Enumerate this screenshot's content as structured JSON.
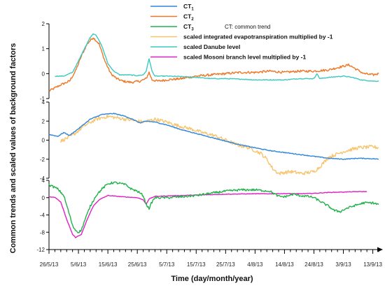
{
  "chart_data": {
    "type": "line",
    "xlabel": "Time (day/month/year)",
    "ylabel": "Common trends and scaled values of background factors",
    "x_tick_labels": [
      "26/5/13",
      "5/6/13",
      "15/6/13",
      "25/6/13",
      "5/7/13",
      "15/7/13",
      "25/7/13",
      "4/8/13",
      "14/8/13",
      "24/8/13",
      "3/9/13",
      "13/9/13"
    ],
    "x_start_day": 0,
    "x_end_day": 112,
    "legend": {
      "placement": "top",
      "note": "CT: common trend",
      "entries": [
        {
          "base": "CT",
          "sub": "1",
          "color": "#2e86de"
        },
        {
          "base": "CT",
          "sub": "2",
          "color": "#ee7624"
        },
        {
          "base": "CT",
          "sub": "3",
          "color": "#22b24c"
        },
        {
          "base": "scaled integrated evapotranspiration multiplied by -1",
          "sub": "",
          "color": "#f7c46c"
        },
        {
          "base": "scaled Danube level",
          "sub": "",
          "color": "#3cc9c0"
        },
        {
          "base": "scaled Mosoni branch level multiplied by -1",
          "sub": "",
          "color": "#e020c6"
        }
      ]
    },
    "panels": [
      {
        "name": "top",
        "ylim": [
          -1,
          2
        ],
        "yticks": [
          -1,
          0,
          1,
          2
        ],
        "series": [
          {
            "ref": "CT2",
            "color": "#ee7624",
            "noise": 0.045,
            "points": [
              [
                0,
                -0.7
              ],
              [
                4,
                -0.45
              ],
              [
                7,
                -0.3
              ],
              [
                9,
                0.1
              ],
              [
                11,
                0.7
              ],
              [
                13,
                1.2
              ],
              [
                15,
                1.45
              ],
              [
                17,
                1.2
              ],
              [
                19,
                0.5
              ],
              [
                21,
                0.0
              ],
              [
                23,
                -0.2
              ],
              [
                25,
                -0.3
              ],
              [
                28,
                -0.35
              ],
              [
                31,
                -0.3
              ],
              [
                33,
                -0.2
              ],
              [
                34,
                0.05
              ],
              [
                35,
                -0.25
              ],
              [
                37,
                -0.3
              ],
              [
                40,
                -0.25
              ],
              [
                45,
                -0.2
              ],
              [
                50,
                -0.1
              ],
              [
                55,
                -0.05
              ],
              [
                60,
                0.0
              ],
              [
                65,
                0.05
              ],
              [
                70,
                0.05
              ],
              [
                75,
                0.1
              ],
              [
                80,
                0.05
              ],
              [
                85,
                0.1
              ],
              [
                90,
                0.1
              ],
              [
                95,
                0.15
              ],
              [
                100,
                0.3
              ],
              [
                102,
                0.35
              ],
              [
                104,
                0.2
              ],
              [
                107,
                0.0
              ],
              [
                110,
                -0.05
              ],
              [
                112,
                0.0
              ]
            ]
          },
          {
            "ref": "Danube",
            "color": "#3cc9c0",
            "noise": 0.015,
            "points": [
              [
                2,
                -0.1
              ],
              [
                5,
                -0.1
              ],
              [
                8,
                0.05
              ],
              [
                10,
                0.5
              ],
              [
                12,
                1.0
              ],
              [
                14,
                1.45
              ],
              [
                15,
                1.6
              ],
              [
                16,
                1.55
              ],
              [
                18,
                1.1
              ],
              [
                20,
                0.4
              ],
              [
                22,
                0.1
              ],
              [
                24,
                -0.05
              ],
              [
                27,
                -0.05
              ],
              [
                30,
                -0.08
              ],
              [
                32,
                -0.05
              ],
              [
                33,
                0.1
              ],
              [
                34,
                0.6
              ],
              [
                35,
                0.1
              ],
              [
                36,
                -0.1
              ],
              [
                40,
                -0.1
              ],
              [
                45,
                -0.12
              ],
              [
                50,
                -0.15
              ],
              [
                55,
                -0.2
              ],
              [
                60,
                -0.2
              ],
              [
                65,
                -0.22
              ],
              [
                70,
                -0.25
              ],
              [
                75,
                -0.25
              ],
              [
                80,
                -0.25
              ],
              [
                85,
                -0.2
              ],
              [
                90,
                -0.2
              ],
              [
                91,
                0.0
              ],
              [
                92,
                -0.2
              ],
              [
                95,
                -0.15
              ],
              [
                100,
                -0.1
              ],
              [
                103,
                -0.15
              ],
              [
                106,
                -0.25
              ],
              [
                110,
                -0.3
              ],
              [
                112,
                -0.3
              ]
            ]
          }
        ]
      },
      {
        "name": "middle",
        "ylim": [
          -4,
          4
        ],
        "yticks": [
          -4,
          -2,
          0,
          2,
          4
        ],
        "series": [
          {
            "ref": "ET",
            "color": "#f7c46c",
            "noise": 0.18,
            "points": [
              [
                4,
                -0.1
              ],
              [
                8,
                0.5
              ],
              [
                12,
                1.5
              ],
              [
                16,
                2.2
              ],
              [
                20,
                2.5
              ],
              [
                24,
                2.3
              ],
              [
                28,
                2.1
              ],
              [
                32,
                1.9
              ],
              [
                36,
                2.2
              ],
              [
                40,
                1.9
              ],
              [
                44,
                1.5
              ],
              [
                48,
                1.2
              ],
              [
                52,
                0.8
              ],
              [
                56,
                0.5
              ],
              [
                60,
                0.0
              ],
              [
                64,
                -0.5
              ],
              [
                68,
                -0.8
              ],
              [
                72,
                -1.4
              ],
              [
                74,
                -2.0
              ],
              [
                76,
                -3.0
              ],
              [
                78,
                -3.5
              ],
              [
                82,
                -3.3
              ],
              [
                86,
                -3.5
              ],
              [
                90,
                -3.3
              ],
              [
                92,
                -2.8
              ],
              [
                95,
                -1.8
              ],
              [
                100,
                -1.2
              ],
              [
                105,
                -0.8
              ],
              [
                110,
                -0.7
              ],
              [
                112,
                -0.8
              ]
            ]
          },
          {
            "ref": "CT1",
            "color": "#2e86de",
            "noise": 0.04,
            "points": [
              [
                0,
                0.6
              ],
              [
                3,
                0.4
              ],
              [
                5,
                0.8
              ],
              [
                7,
                0.5
              ],
              [
                10,
                1.2
              ],
              [
                14,
                2.2
              ],
              [
                18,
                2.7
              ],
              [
                22,
                2.8
              ],
              [
                26,
                2.5
              ],
              [
                29,
                2.1
              ],
              [
                31,
                1.8
              ],
              [
                33,
                2.0
              ],
              [
                36,
                1.9
              ],
              [
                40,
                1.6
              ],
              [
                45,
                1.1
              ],
              [
                50,
                0.7
              ],
              [
                55,
                0.3
              ],
              [
                60,
                -0.1
              ],
              [
                65,
                -0.5
              ],
              [
                70,
                -0.8
              ],
              [
                75,
                -1.1
              ],
              [
                80,
                -1.3
              ],
              [
                85,
                -1.5
              ],
              [
                90,
                -1.7
              ],
              [
                95,
                -1.9
              ],
              [
                100,
                -2.0
              ],
              [
                105,
                -1.9
              ],
              [
                110,
                -1.95
              ],
              [
                112,
                -2.0
              ]
            ]
          }
        ]
      },
      {
        "name": "bottom",
        "ylim": [
          -12,
          4
        ],
        "yticks": [
          -12,
          -8,
          -4,
          0,
          4
        ],
        "series": [
          {
            "ref": "Mosoni",
            "color": "#e020c6",
            "noise": 0.06,
            "points": [
              [
                0,
                0.2
              ],
              [
                2,
                0.1
              ],
              [
                4,
                -1.0
              ],
              [
                6,
                -5.0
              ],
              [
                8,
                -8.5
              ],
              [
                9,
                -9.2
              ],
              [
                11,
                -8.5
              ],
              [
                13,
                -5.0
              ],
              [
                15,
                -2.0
              ],
              [
                17,
                -0.5
              ],
              [
                20,
                0.5
              ],
              [
                25,
                0.2
              ],
              [
                30,
                0.0
              ],
              [
                32,
                -0.5
              ],
              [
                33,
                -1.5
              ],
              [
                34,
                -0.3
              ],
              [
                36,
                0.3
              ],
              [
                40,
                0.4
              ],
              [
                50,
                0.6
              ],
              [
                60,
                0.8
              ],
              [
                70,
                0.9
              ],
              [
                75,
                0.9
              ],
              [
                80,
                0.95
              ],
              [
                85,
                0.9
              ],
              [
                90,
                1.0
              ],
              [
                95,
                1.2
              ],
              [
                100,
                1.3
              ],
              [
                105,
                1.4
              ],
              [
                108,
                1.4
              ]
            ]
          },
          {
            "ref": "CT3",
            "color": "#22b24c",
            "noise": 0.25,
            "points": [
              [
                0,
                3.0
              ],
              [
                3,
                2.0
              ],
              [
                5,
                0.5
              ],
              [
                7,
                -4.0
              ],
              [
                8,
                -6.5
              ],
              [
                9,
                -7.5
              ],
              [
                10,
                -8.0
              ],
              [
                11,
                -7.5
              ],
              [
                12,
                -5.5
              ],
              [
                14,
                -2.0
              ],
              [
                16,
                0.5
              ],
              [
                18,
                2.0
              ],
              [
                20,
                3.2
              ],
              [
                22,
                3.5
              ],
              [
                24,
                3.3
              ],
              [
                26,
                3.0
              ],
              [
                28,
                2.0
              ],
              [
                30,
                1.5
              ],
              [
                32,
                0.5
              ],
              [
                33,
                -1.5
              ],
              [
                34,
                -2.5
              ],
              [
                35,
                -1.0
              ],
              [
                36,
                0.0
              ],
              [
                40,
                0.0
              ],
              [
                45,
                0.2
              ],
              [
                50,
                0.5
              ],
              [
                55,
                1.0
              ],
              [
                60,
                1.5
              ],
              [
                65,
                1.8
              ],
              [
                70,
                1.8
              ],
              [
                75,
                1.5
              ],
              [
                78,
                0.3
              ],
              [
                80,
                0.2
              ],
              [
                83,
                0.8
              ],
              [
                85,
                0.5
              ],
              [
                88,
                0.3
              ],
              [
                90,
                0.0
              ],
              [
                92,
                -0.8
              ],
              [
                95,
                -2.0
              ],
              [
                97,
                -3.0
              ],
              [
                99,
                -3.2
              ],
              [
                101,
                -2.5
              ],
              [
                104,
                -1.8
              ],
              [
                107,
                -1.2
              ],
              [
                110,
                -1.2
              ],
              [
                112,
                -1.6
              ]
            ]
          }
        ]
      }
    ]
  }
}
